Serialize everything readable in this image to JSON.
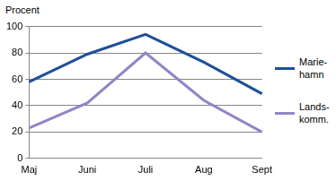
{
  "chart_data": {
    "type": "line",
    "y_label": "Procent",
    "categories": [
      "Maj",
      "Juni",
      "Juli",
      "Aug",
      "Sept"
    ],
    "series": [
      {
        "name": "Marie-\nhamn",
        "color": "#1f4e99",
        "values": [
          58,
          79,
          94,
          73,
          49
        ]
      },
      {
        "name": "Lands-\nkomm.",
        "color": "#9484c6",
        "values": [
          23,
          42,
          80,
          44,
          20
        ]
      }
    ],
    "ylim": [
      0,
      100
    ],
    "yticks": [
      0,
      20,
      40,
      60,
      80,
      100
    ],
    "grid": true,
    "legend": "right"
  }
}
